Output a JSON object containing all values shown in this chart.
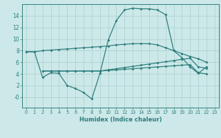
{
  "xlabel": "Humidex (Indice chaleur)",
  "background_color": "#cce8e8",
  "line_color": "#2e7d7d",
  "grid_color": "#aacfcf",
  "xlim": [
    -0.5,
    23.5
  ],
  "ylim": [
    -1.8,
    16.0
  ],
  "xticks": [
    0,
    1,
    2,
    3,
    4,
    5,
    6,
    7,
    8,
    9,
    10,
    11,
    12,
    13,
    14,
    15,
    16,
    17,
    18,
    19,
    20,
    21,
    22,
    23
  ],
  "yticks": [
    0,
    2,
    4,
    6,
    8,
    10,
    12,
    14
  ],
  "ytick_labels": [
    "-0",
    "2",
    "4",
    "6",
    "8",
    "10",
    "12",
    "14"
  ],
  "line1_x": [
    0,
    1,
    2,
    3,
    4,
    5,
    6,
    7,
    8,
    9,
    10,
    11,
    12,
    13,
    14,
    15,
    16,
    17,
    18,
    19,
    20,
    21,
    22
  ],
  "line1_y": [
    7.8,
    7.8,
    3.4,
    4.2,
    4.1,
    2.0,
    1.5,
    0.8,
    -0.3,
    4.1,
    9.8,
    13.2,
    15.0,
    15.3,
    15.2,
    15.2,
    15.0,
    14.2,
    8.0,
    6.8,
    5.2,
    4.1,
    5.2
  ],
  "line2_x": [
    0,
    1,
    2,
    3,
    4,
    5,
    6,
    7,
    8,
    9,
    10,
    11,
    12,
    13,
    14,
    15,
    16,
    17,
    18,
    19,
    20,
    21,
    22
  ],
  "line2_y": [
    7.8,
    7.8,
    8.0,
    8.1,
    8.2,
    8.3,
    8.4,
    8.5,
    8.6,
    8.7,
    8.8,
    9.0,
    9.1,
    9.2,
    9.2,
    9.2,
    9.0,
    8.5,
    8.0,
    7.5,
    7.0,
    6.6,
    6.0
  ],
  "line3_x": [
    2,
    3,
    4,
    5,
    6,
    7,
    8,
    9,
    10,
    11,
    12,
    13,
    14,
    15,
    16,
    17,
    18,
    19,
    20,
    21,
    22
  ],
  "line3_y": [
    4.5,
    4.5,
    4.5,
    4.5,
    4.5,
    4.5,
    4.5,
    4.5,
    4.7,
    4.9,
    5.1,
    5.3,
    5.5,
    5.7,
    5.9,
    6.1,
    6.3,
    6.5,
    6.7,
    5.2,
    5.0
  ],
  "line4_x": [
    2,
    3,
    4,
    5,
    6,
    7,
    8,
    9,
    10,
    11,
    12,
    13,
    14,
    15,
    16,
    17,
    18,
    19,
    20,
    21,
    22
  ],
  "line4_y": [
    4.5,
    4.5,
    4.5,
    4.5,
    4.5,
    4.5,
    4.5,
    4.5,
    4.6,
    4.7,
    4.8,
    4.9,
    5.0,
    5.1,
    5.2,
    5.3,
    5.4,
    5.5,
    5.6,
    4.2,
    4.0
  ],
  "markersize": 2.0,
  "linewidth": 0.9
}
